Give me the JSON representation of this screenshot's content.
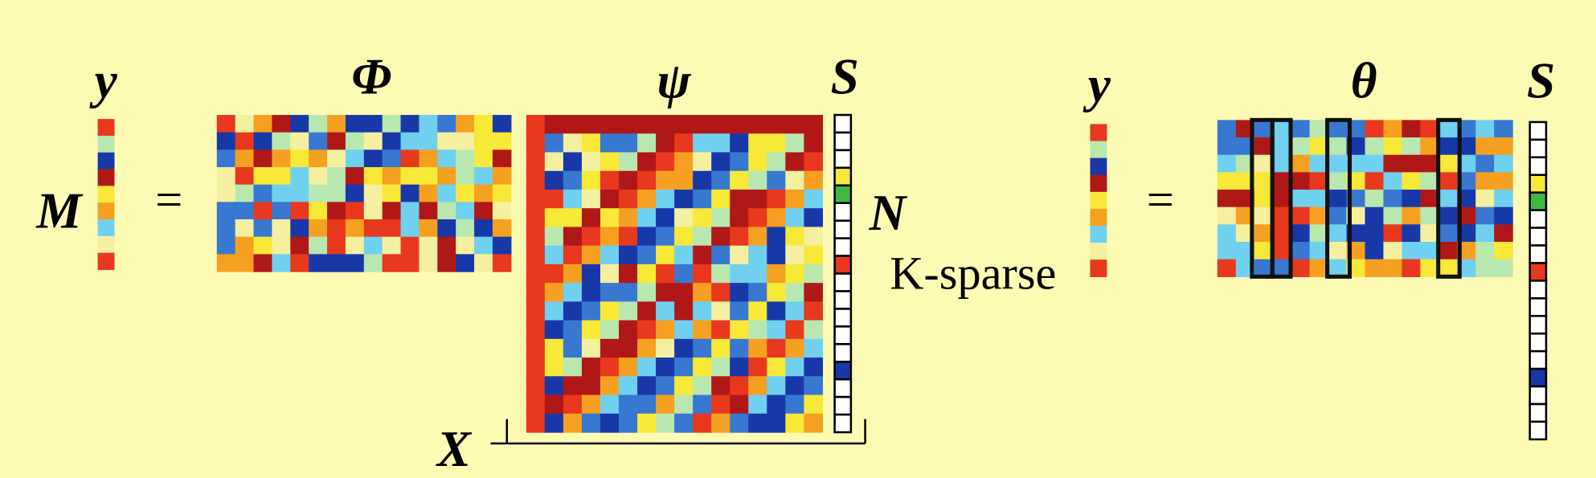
{
  "left": {
    "y_label": "y",
    "m_label": "M",
    "equals": "=",
    "phi_label": "Φ",
    "psi_label": "ψ",
    "s_label": "S",
    "n_label": "N",
    "k_sparse": "K-sparse",
    "x_label": "X"
  },
  "right": {
    "y_label": "y",
    "equals": "=",
    "theta_label": "θ",
    "s_label": "S"
  }
}
